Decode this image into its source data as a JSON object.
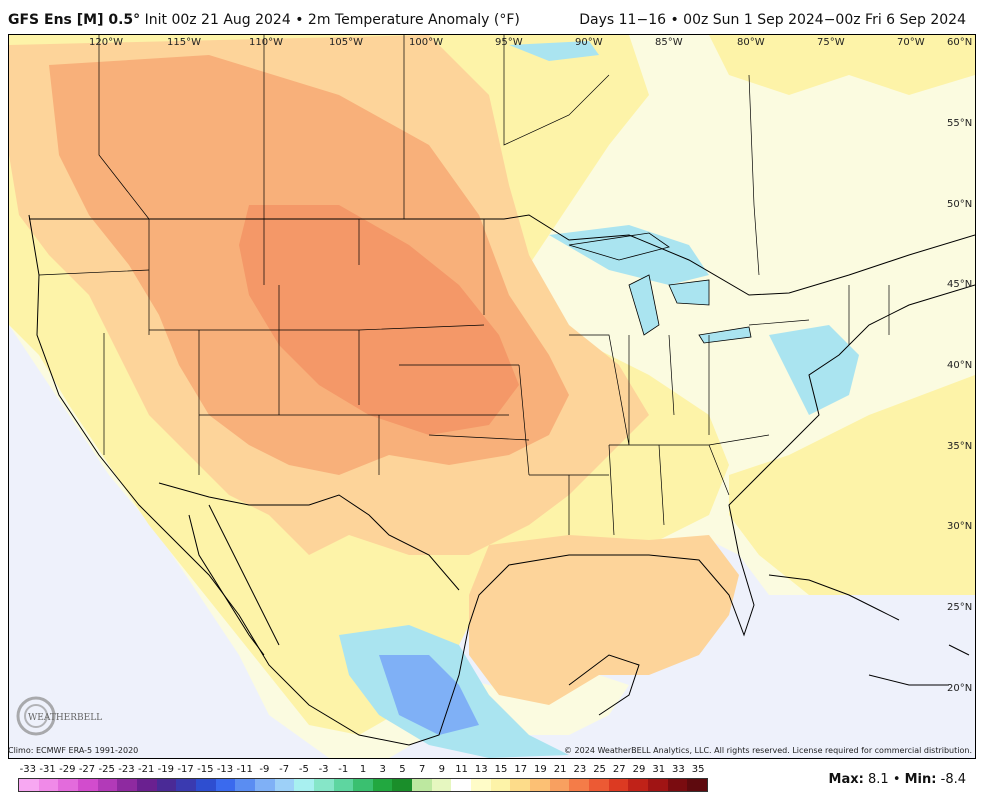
{
  "header": {
    "model": "GFS Ens [M] 0.5°",
    "init": "Init 00z 21 Aug 2024",
    "bullet": "•",
    "variable": "2m Temperature Anomaly (°F)",
    "valid": "Days 11−16 • 00z Sun 1 Sep 2024−00z Fri 6 Sep 2024"
  },
  "map": {
    "lon_labels": [
      "120°W",
      "115°W",
      "110°W",
      "105°W",
      "100°W",
      "95°W",
      "90°W",
      "85°W",
      "80°W",
      "75°W",
      "70°W"
    ],
    "lat_labels": [
      "60°N",
      "55°N",
      "50°N",
      "45°N",
      "40°N",
      "35°N",
      "30°N",
      "25°N",
      "20°N"
    ],
    "colors": {
      "ocean_neutral": "#eef1fb",
      "land_neutral": "#fbfbe0",
      "light_yellow": "#fdf3a8",
      "light_orange": "#fdd49a",
      "orange": "#f8b07a",
      "deep_orange": "#f49868",
      "light_cyan": "#aae4f0",
      "cyan": "#7fd0ec",
      "blue": "#6aa8ee"
    }
  },
  "footer": {
    "climo": "Climo: ECMWF ERA-5 1991-2020",
    "copyright": "© 2024 WeatherBELL Analytics, LLC. All rights reserved. License required for commercial distribution.",
    "logo_text": "WEATHERBELL",
    "max_label": "Max:",
    "max_value": "8.1",
    "min_label": "Min:",
    "min_value": "-8.4",
    "separator": "•"
  },
  "legend": {
    "labels": [
      "-33",
      "-31",
      "-29",
      "-27",
      "-25",
      "-23",
      "-21",
      "-19",
      "-17",
      "-15",
      "-13",
      "-11",
      "-9",
      "-7",
      "-5",
      "-3",
      "-1",
      "1",
      "3",
      "5",
      "7",
      "9",
      "11",
      "13",
      "15",
      "17",
      "19",
      "21",
      "23",
      "25",
      "27",
      "29",
      "31",
      "33",
      "35"
    ],
    "colors": [
      "#f7a8f2",
      "#f08ae8",
      "#e36bdc",
      "#d24ccd",
      "#b23ab8",
      "#8e2aa0",
      "#6a2090",
      "#4a2a96",
      "#3a3ab0",
      "#2e4ed0",
      "#3a6aee",
      "#5a8df2",
      "#7fb0f6",
      "#9dd0f8",
      "#a8f0f0",
      "#86e6c8",
      "#5ed6a0",
      "#3ac070",
      "#22a840",
      "#1a8e2a",
      "#bde8a0",
      "#e6f7c0",
      "#ffffff",
      "#fffcc8",
      "#fdf3a8",
      "#fddc8a",
      "#fcc074",
      "#f8a060",
      "#f47c48",
      "#ec5a34",
      "#dc3a22",
      "#c02218",
      "#a01414",
      "#7a0c10",
      "#5e0a0e"
    ]
  }
}
